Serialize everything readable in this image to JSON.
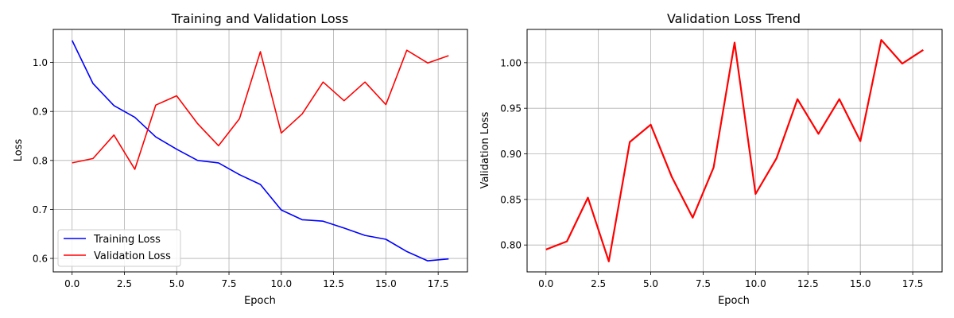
{
  "chart_data": [
    {
      "type": "line",
      "title": "Training and Validation Loss",
      "xlabel": "Epoch",
      "ylabel": "Loss",
      "xlim": [
        -0.9,
        18.9
      ],
      "ylim": [
        0.5725,
        1.0675
      ],
      "xticks": [
        0,
        2.5,
        5,
        7.5,
        10,
        12.5,
        15,
        17.5
      ],
      "xtick_labels": [
        "0.0",
        "2.5",
        "5.0",
        "7.5",
        "10.0",
        "12.5",
        "15.0",
        "17.5"
      ],
      "yticks": [
        0.6,
        0.7,
        0.8,
        0.9,
        1.0
      ],
      "ytick_labels": [
        "0.6",
        "0.7",
        "0.8",
        "0.9",
        "1.0"
      ],
      "grid": true,
      "legend_position": "lower-left",
      "x": [
        0,
        1,
        2,
        3,
        4,
        5,
        6,
        7,
        8,
        9,
        10,
        11,
        12,
        13,
        14,
        15,
        16,
        17,
        18
      ],
      "series": [
        {
          "name": "Training Loss",
          "color": "#0000ff",
          "values": [
            1.045,
            0.957,
            0.912,
            0.888,
            0.848,
            0.823,
            0.8,
            0.795,
            0.771,
            0.751,
            0.699,
            0.679,
            0.676,
            0.662,
            0.647,
            0.639,
            0.614,
            0.595,
            0.599
          ]
        },
        {
          "name": "Validation Loss",
          "color": "#ff0000",
          "values": [
            0.795,
            0.804,
            0.852,
            0.782,
            0.913,
            0.932,
            0.875,
            0.83,
            0.885,
            1.022,
            0.856,
            0.895,
            0.96,
            0.922,
            0.96,
            0.914,
            1.025,
            0.999,
            1.014
          ]
        }
      ]
    },
    {
      "type": "line",
      "title": "Validation Loss Trend",
      "xlabel": "Epoch",
      "ylabel": "Validation Loss",
      "xlim": [
        -0.9,
        18.9
      ],
      "ylim": [
        0.7705,
        1.0365
      ],
      "xticks": [
        0,
        2.5,
        5,
        7.5,
        10,
        12.5,
        15,
        17.5
      ],
      "xtick_labels": [
        "0.0",
        "2.5",
        "5.0",
        "7.5",
        "10.0",
        "12.5",
        "15.0",
        "17.5"
      ],
      "yticks": [
        0.8,
        0.85,
        0.9,
        0.95,
        1.0
      ],
      "ytick_labels": [
        "0.80",
        "0.85",
        "0.90",
        "0.95",
        "1.00"
      ],
      "grid": true,
      "x": [
        0,
        1,
        2,
        3,
        4,
        5,
        6,
        7,
        8,
        9,
        10,
        11,
        12,
        13,
        14,
        15,
        16,
        17,
        18
      ],
      "series": [
        {
          "color": "#ff0000",
          "values": [
            0.795,
            0.804,
            0.852,
            0.782,
            0.913,
            0.932,
            0.875,
            0.83,
            0.885,
            1.022,
            0.856,
            0.895,
            0.96,
            0.922,
            0.96,
            0.914,
            1.025,
            0.999,
            1.014
          ]
        }
      ]
    }
  ]
}
